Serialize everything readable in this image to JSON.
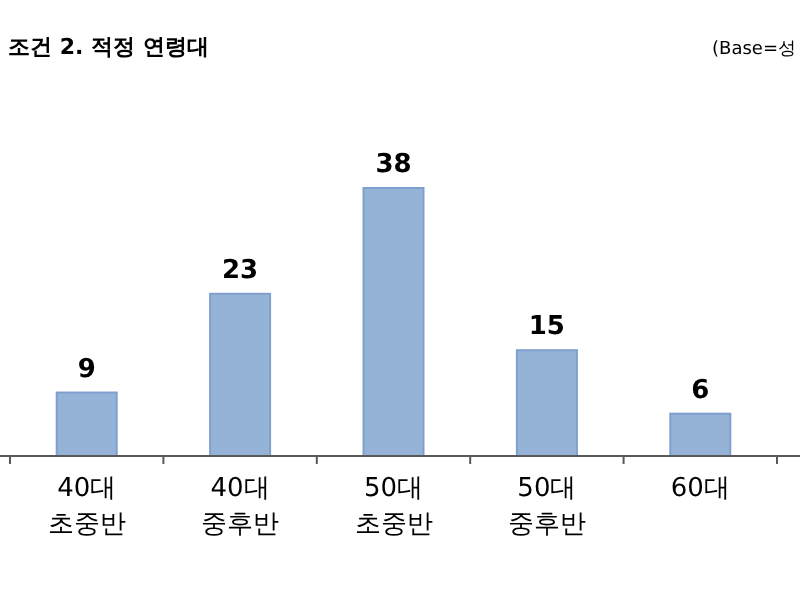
{
  "chart_data": {
    "type": "bar",
    "title": "조건 2. 적정 연령대",
    "annotations": [
      "(Base=성"
    ],
    "categories": [
      "40대\n초중반",
      "40대\n중후반",
      "50대\n초중반",
      "50대\n중후반",
      "60대"
    ],
    "values": [
      9,
      23,
      38,
      15,
      6
    ],
    "color": "#95b3d7",
    "data_labels": true
  }
}
